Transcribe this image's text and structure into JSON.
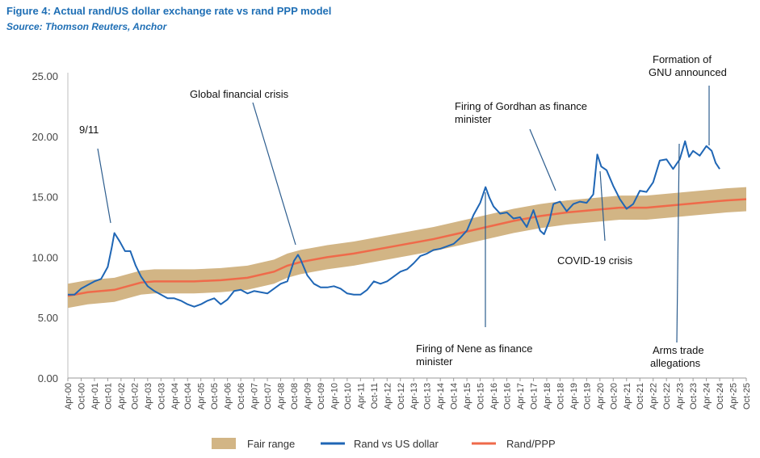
{
  "figure": {
    "title": "Figure 4: Actual rand/US dollar exchange rate vs rand PPP model",
    "source": "Source: Thomson Reuters, Anchor"
  },
  "colors": {
    "rand": "#1f66b5",
    "ppp": "#ef6a4a",
    "band": "#d2b585",
    "title": "#1f6fb5"
  },
  "chart_data": {
    "type": "line",
    "ylim": [
      0,
      25
    ],
    "yticks": [
      "0.00",
      "5.00",
      "10.00",
      "15.00",
      "20.00",
      "25.00"
    ],
    "xlim": [
      2000.25,
      2025.75
    ],
    "xticks": [
      "Apr-00",
      "Oct-00",
      "Apr-01",
      "Oct-01",
      "Apr-02",
      "Oct-02",
      "Apr-03",
      "Oct-03",
      "Apr-04",
      "Oct-04",
      "Apr-05",
      "Oct-05",
      "Apr-06",
      "Oct-06",
      "Apr-07",
      "Oct-07",
      "Apr-08",
      "Oct-08",
      "Apr-09",
      "Oct-09",
      "Apr-10",
      "Oct-10",
      "Apr-11",
      "Oct-11",
      "Apr-12",
      "Oct-12",
      "Apr-13",
      "Oct-13",
      "Apr-14",
      "Oct-14",
      "Apr-15",
      "Oct-15",
      "Apr-16",
      "Oct-16",
      "Apr-17",
      "Oct-17",
      "Apr-18",
      "Oct-18",
      "Apr-19",
      "Oct-19",
      "Apr-20",
      "Oct-20",
      "Apr-21",
      "Oct-21",
      "Apr-22",
      "Oct-22",
      "Apr-23",
      "Oct-23",
      "Apr-24",
      "Oct-24",
      "Apr-25",
      "Oct-25"
    ],
    "legend": [
      "Fair range",
      "Rand vs US dollar",
      "Rand/PPP"
    ],
    "legend_position": "bottom",
    "series": [
      {
        "name": "Rand vs US dollar",
        "x": [
          2000.25,
          2000.5,
          2000.75,
          2001.0,
          2001.25,
          2001.5,
          2001.75,
          2001.9,
          2002.0,
          2002.2,
          2002.4,
          2002.6,
          2002.8,
          2003.0,
          2003.25,
          2003.5,
          2003.75,
          2004.0,
          2004.25,
          2004.5,
          2004.75,
          2005.0,
          2005.25,
          2005.5,
          2005.75,
          2006.0,
          2006.25,
          2006.5,
          2006.75,
          2007.0,
          2007.25,
          2007.5,
          2007.75,
          2008.0,
          2008.25,
          2008.5,
          2008.75,
          2008.9,
          2009.0,
          2009.25,
          2009.5,
          2009.75,
          2010.0,
          2010.25,
          2010.5,
          2010.75,
          2011.0,
          2011.25,
          2011.5,
          2011.75,
          2012.0,
          2012.25,
          2012.5,
          2012.75,
          2013.0,
          2013.25,
          2013.5,
          2013.75,
          2014.0,
          2014.25,
          2014.5,
          2014.75,
          2015.0,
          2015.25,
          2015.5,
          2015.75,
          2015.95,
          2016.1,
          2016.25,
          2016.5,
          2016.75,
          2017.0,
          2017.25,
          2017.5,
          2017.75,
          2018.0,
          2018.15,
          2018.35,
          2018.5,
          2018.75,
          2019.0,
          2019.25,
          2019.5,
          2019.75,
          2020.0,
          2020.15,
          2020.3,
          2020.5,
          2020.75,
          2021.0,
          2021.25,
          2021.5,
          2021.75,
          2022.0,
          2022.25,
          2022.5,
          2022.75,
          2023.0,
          2023.25,
          2023.45,
          2023.6,
          2023.75,
          2024.0,
          2024.25,
          2024.45,
          2024.6,
          2024.75
        ],
        "y": [
          6.9,
          6.9,
          7.4,
          7.7,
          8.0,
          8.2,
          9.2,
          10.8,
          12.0,
          11.3,
          10.5,
          10.5,
          9.3,
          8.4,
          7.6,
          7.2,
          6.9,
          6.6,
          6.6,
          6.4,
          6.1,
          5.9,
          6.1,
          6.4,
          6.6,
          6.1,
          6.5,
          7.2,
          7.3,
          7.0,
          7.2,
          7.1,
          7.0,
          7.4,
          7.8,
          8.0,
          9.7,
          10.2,
          9.8,
          8.5,
          7.8,
          7.5,
          7.5,
          7.6,
          7.4,
          7.0,
          6.9,
          6.9,
          7.3,
          8.0,
          7.8,
          8.0,
          8.4,
          8.8,
          9.0,
          9.5,
          10.1,
          10.3,
          10.6,
          10.7,
          10.9,
          11.1,
          11.6,
          12.2,
          13.5,
          14.5,
          15.8,
          14.9,
          14.2,
          13.6,
          13.7,
          13.2,
          13.3,
          12.5,
          13.9,
          12.2,
          11.9,
          13.0,
          14.4,
          14.6,
          13.8,
          14.4,
          14.6,
          14.5,
          15.2,
          18.5,
          17.5,
          17.2,
          15.9,
          14.8,
          14.0,
          14.4,
          15.5,
          15.4,
          16.2,
          18.0,
          18.1,
          17.3,
          18.1,
          19.6,
          18.3,
          18.8,
          18.4,
          19.2,
          18.8,
          17.8,
          17.3
        ]
      },
      {
        "name": "Rand/PPP",
        "x": [
          2000.25,
          2001.0,
          2002.0,
          2003.0,
          2003.5,
          2004.0,
          2005.0,
          2006.0,
          2007.0,
          2008.0,
          2008.5,
          2009.0,
          2010.0,
          2011.0,
          2012.0,
          2013.0,
          2014.0,
          2015.0,
          2016.0,
          2017.0,
          2018.0,
          2019.0,
          2020.0,
          2021.0,
          2022.0,
          2023.0,
          2024.0,
          2025.0,
          2025.75
        ],
        "y": [
          6.8,
          7.1,
          7.3,
          7.9,
          8.0,
          8.0,
          8.0,
          8.1,
          8.3,
          8.8,
          9.3,
          9.6,
          10.0,
          10.3,
          10.7,
          11.1,
          11.5,
          12.0,
          12.5,
          13.0,
          13.4,
          13.7,
          13.9,
          14.1,
          14.1,
          14.3,
          14.5,
          14.7,
          14.8
        ],
        "band_halfwidth": 1.0
      }
    ]
  },
  "annotations": [
    {
      "text": "9/11"
    },
    {
      "text": "Global financial crisis"
    },
    {
      "text": "Firing of Gordhan as finance"
    },
    {
      "text": "minister"
    },
    {
      "text": "Formation of"
    },
    {
      "text": "GNU announced"
    },
    {
      "text": "COVID-19 crisis"
    },
    {
      "text": "Firing of Nene as finance"
    },
    {
      "text": "minister"
    },
    {
      "text": "Arms trade"
    },
    {
      "text": "allegations"
    }
  ]
}
